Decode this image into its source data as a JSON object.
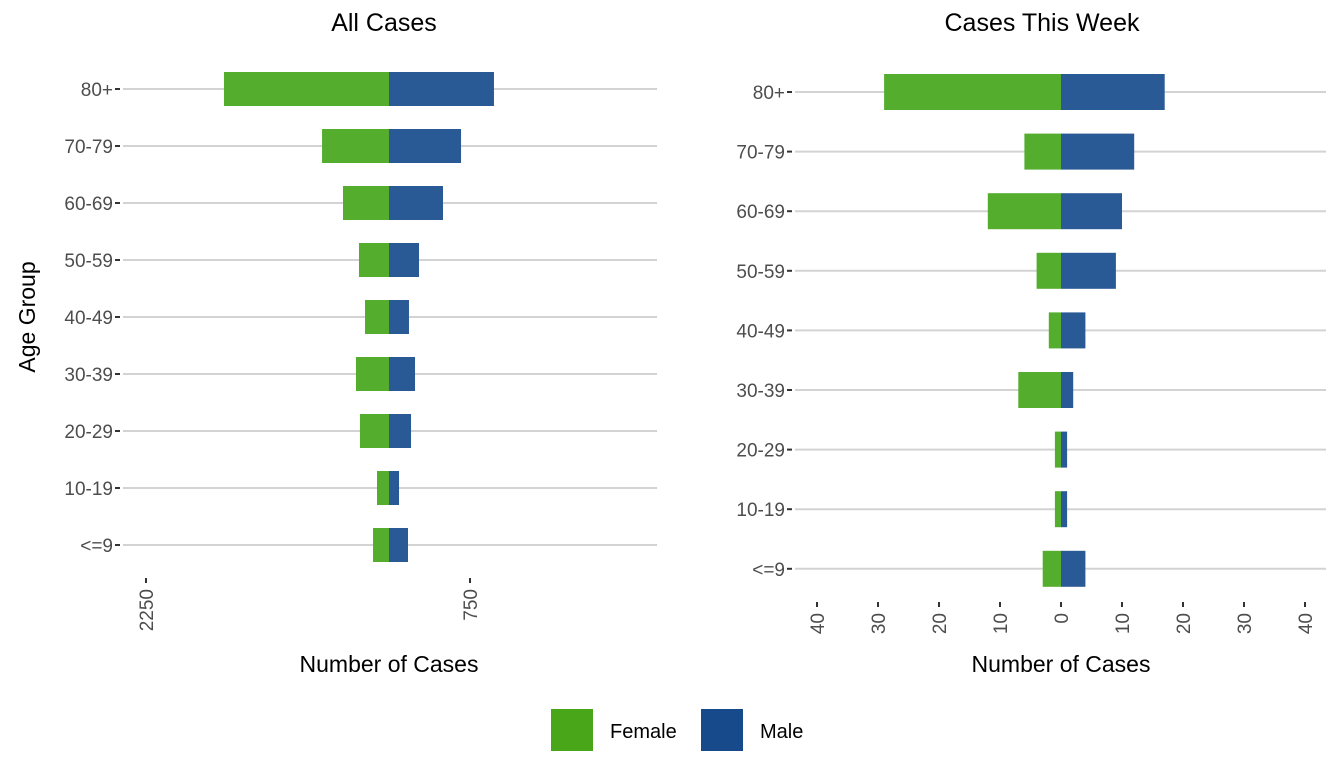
{
  "legend": {
    "items": [
      {
        "label": "Female",
        "color": "#49a619"
      },
      {
        "label": "Male",
        "color": "#174a8b"
      }
    ]
  },
  "chart_data": [
    {
      "type": "bar",
      "orientation": "horizontal-population-pyramid",
      "title": "All Cases",
      "xlabel": "Number of Cases",
      "ylabel": "Age Group",
      "categories": [
        "<=9",
        "10-19",
        "20-29",
        "30-39",
        "40-49",
        "50-59",
        "60-69",
        "70-79",
        "80+"
      ],
      "series": [
        {
          "name": "Female",
          "color": "#55ad2e",
          "values": [
            148,
            111,
            269,
            306,
            222,
            278,
            426,
            620,
            1528
          ]
        },
        {
          "name": "Male",
          "color": "#2a5a96",
          "values": [
            176,
            93,
            204,
            241,
            185,
            278,
            500,
            667,
            972
          ]
        }
      ],
      "xticks": [
        -2250,
        750
      ],
      "xtick_labels": [
        "2250",
        "750"
      ],
      "xlim": [
        -2250,
        2475
      ],
      "grid": "horizontal-major"
    },
    {
      "type": "bar",
      "orientation": "horizontal-population-pyramid",
      "title": "Cases This Week",
      "xlabel": "Number of Cases",
      "ylabel": "",
      "categories": [
        "<=9",
        "10-19",
        "20-29",
        "30-39",
        "40-49",
        "50-59",
        "60-69",
        "70-79",
        "80+"
      ],
      "series": [
        {
          "name": "Female",
          "color": "#55ad2e",
          "values": [
            3,
            1,
            1,
            7,
            2,
            4,
            12,
            6,
            29
          ]
        },
        {
          "name": "Male",
          "color": "#2a5a96",
          "values": [
            4,
            1,
            1,
            2,
            4,
            9,
            10,
            12,
            17
          ]
        }
      ],
      "xticks": [
        -40,
        -30,
        -20,
        -10,
        0,
        10,
        20,
        30,
        40
      ],
      "xtick_labels": [
        "40",
        "30",
        "20",
        "10",
        "0",
        "10",
        "20",
        "30",
        "40"
      ],
      "xlim": [
        -40,
        40
      ],
      "grid": "horizontal-major"
    }
  ]
}
